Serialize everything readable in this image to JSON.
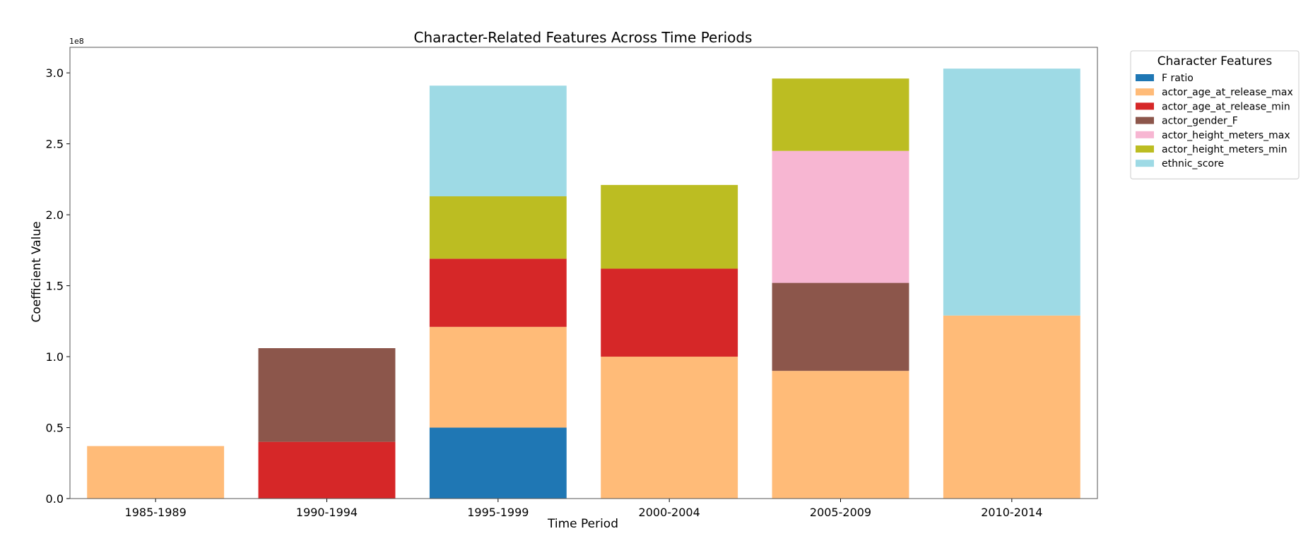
{
  "chart_data": {
    "type": "bar",
    "stacked": true,
    "title": "Character-Related Features Across Time Periods",
    "xlabel": "Time Period",
    "ylabel": "Coefficient Value",
    "y_multiplier_label": "1e8",
    "scale": 100000000,
    "ylim": [
      0,
      3.18
    ],
    "yticks": [
      0.0,
      0.5,
      1.0,
      1.5,
      2.0,
      2.5,
      3.0
    ],
    "ytick_labels": [
      "0.0",
      "0.5",
      "1.0",
      "1.5",
      "2.0",
      "2.5",
      "3.0"
    ],
    "categories": [
      "1985-1989",
      "1990-1994",
      "1995-1999",
      "2000-2004",
      "2005-2009",
      "2010-2014"
    ],
    "grid": false,
    "legend": {
      "title": "Character Features",
      "placement": "outside-top-right"
    },
    "series": [
      {
        "name": "F ratio",
        "color": "#1f77b4",
        "values": [
          0,
          0,
          0.5,
          0,
          0,
          0
        ]
      },
      {
        "name": "actor_age_at_release_max",
        "color": "#ffbb78",
        "values": [
          0.37,
          0,
          0.71,
          1.0,
          0.9,
          1.29
        ]
      },
      {
        "name": "actor_age_at_release_min",
        "color": "#d62728",
        "values": [
          0,
          0.4,
          0.48,
          0.62,
          0,
          0
        ]
      },
      {
        "name": "actor_gender_F",
        "color": "#8c564b",
        "values": [
          0,
          0.66,
          0,
          0,
          0.62,
          0
        ]
      },
      {
        "name": "actor_height_meters_max",
        "color": "#f7b6d2",
        "values": [
          0,
          0,
          0,
          0,
          0.93,
          0
        ]
      },
      {
        "name": "actor_height_meters_min",
        "color": "#bcbd22",
        "values": [
          0,
          0,
          0.44,
          0.59,
          0.51,
          0
        ]
      },
      {
        "name": "ethnic_score",
        "color": "#9edae5",
        "values": [
          0,
          0,
          0.78,
          0,
          0,
          1.74
        ]
      }
    ]
  }
}
